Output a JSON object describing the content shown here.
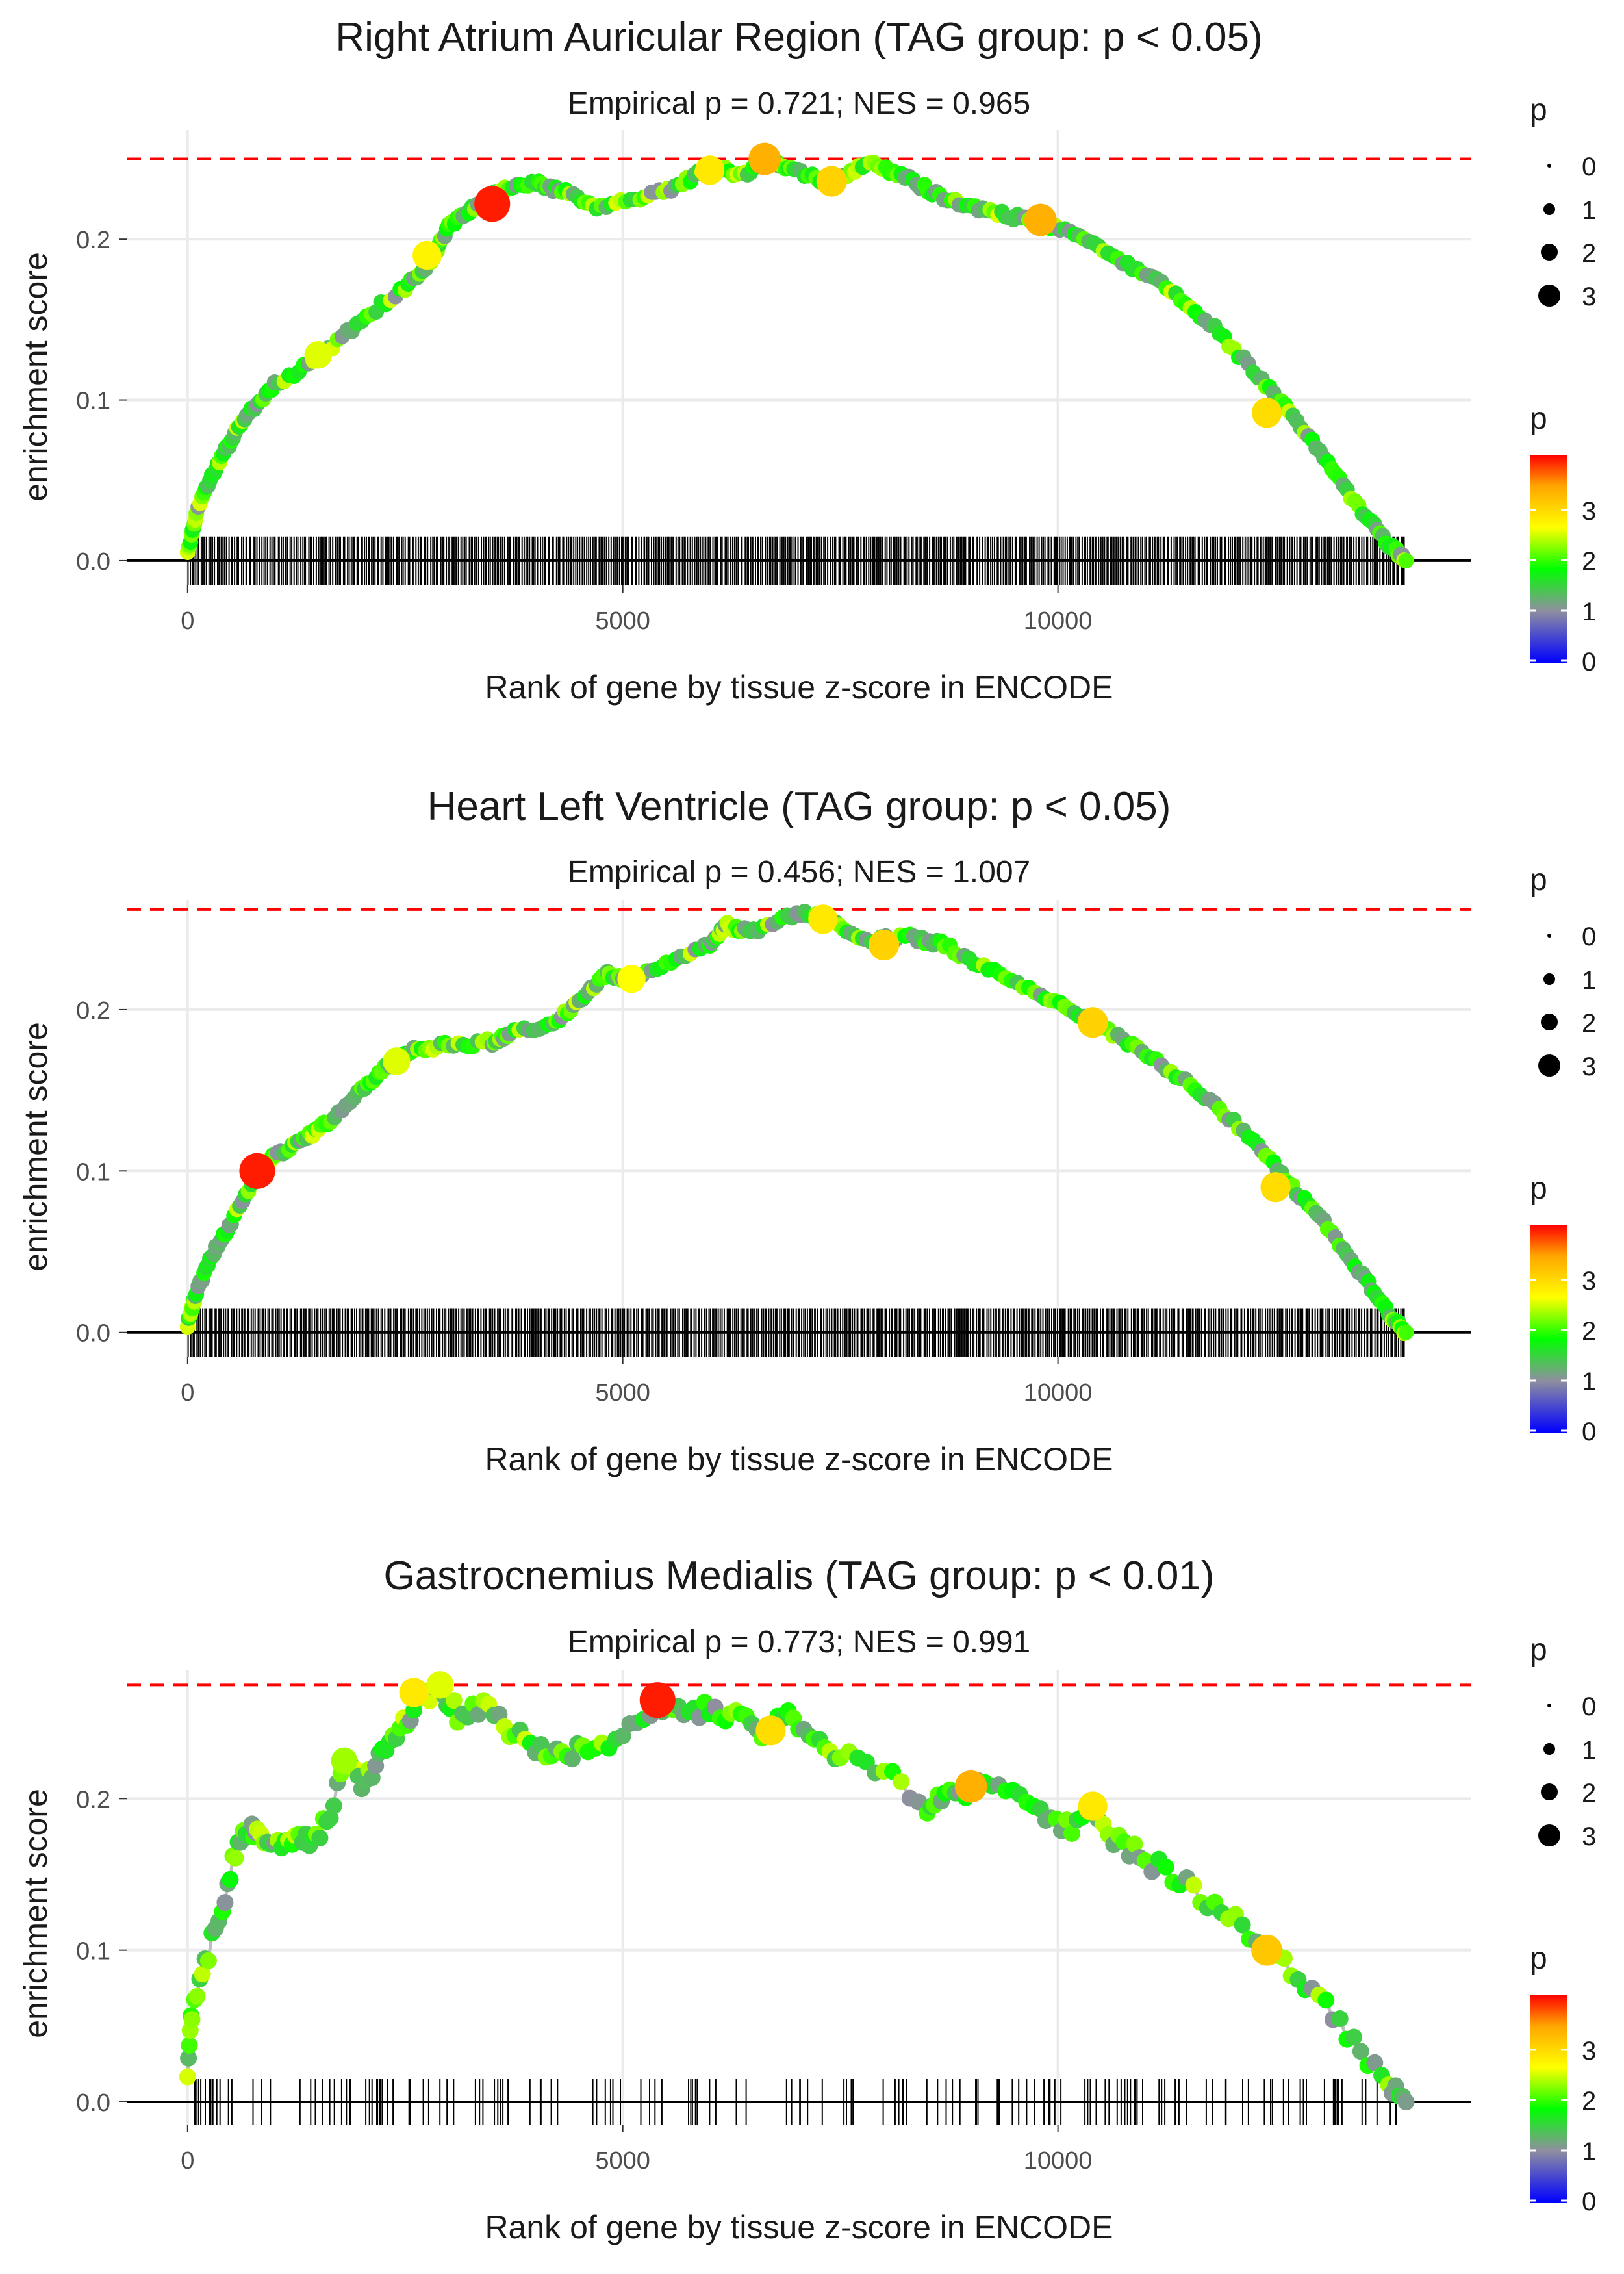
{
  "colors": {
    "grid": "#ebebeb",
    "threshold_line": "#ff0000",
    "axis_line": "#000000",
    "curve": "#bdbdbd",
    "tick_text": "#4d4d4d",
    "text": "#1a1a1a",
    "gradient": [
      "#0000ff",
      "#8f8fa0",
      "#00ff00",
      "#ffff00",
      "#ffa500",
      "#ff0000"
    ]
  },
  "chart_data": [
    {
      "type": "line",
      "title": "Right Atrium Auricular Region (TAG group: p < 0.05)",
      "subtitle": "Empirical p = 0.721; NES = 0.965",
      "xlabel": "Rank of gene by tissue z-score in ENCODE",
      "ylabel": "enrichment score",
      "xlim": [
        -700,
        14750
      ],
      "ylim": [
        -0.015,
        0.268
      ],
      "xticks": [
        0,
        5000,
        10000
      ],
      "xtick_labels": [
        "0",
        "5000",
        "10000"
      ],
      "yticks": [
        0.0,
        0.1,
        0.2
      ],
      "ytick_labels": [
        "0.0",
        "0.1",
        "0.2"
      ],
      "max_es": 0.25,
      "n_genes": 14000,
      "rug": {
        "count": 600,
        "dense": true
      },
      "curve": [
        [
          0,
          0.005
        ],
        [
          100,
          0.03
        ],
        [
          300,
          0.055
        ],
        [
          500,
          0.075
        ],
        [
          700,
          0.092
        ],
        [
          1000,
          0.11
        ],
        [
          1500,
          0.125
        ],
        [
          2000,
          0.15
        ],
        [
          2500,
          0.17
        ],
        [
          2800,
          0.185
        ],
        [
          3000,
          0.208
        ],
        [
          3300,
          0.22
        ],
        [
          3600,
          0.23
        ],
        [
          4000,
          0.235
        ],
        [
          4300,
          0.23
        ],
        [
          4700,
          0.22
        ],
        [
          5200,
          0.225
        ],
        [
          5600,
          0.232
        ],
        [
          6000,
          0.245
        ],
        [
          6400,
          0.24
        ],
        [
          6700,
          0.25
        ],
        [
          7000,
          0.242
        ],
        [
          7400,
          0.235
        ],
        [
          7800,
          0.248
        ],
        [
          8200,
          0.24
        ],
        [
          8600,
          0.228
        ],
        [
          9000,
          0.22
        ],
        [
          9400,
          0.215
        ],
        [
          9800,
          0.21
        ],
        [
          10300,
          0.2
        ],
        [
          10800,
          0.185
        ],
        [
          11300,
          0.168
        ],
        [
          11800,
          0.145
        ],
        [
          12300,
          0.115
        ],
        [
          12700,
          0.09
        ],
        [
          13100,
          0.06
        ],
        [
          13500,
          0.03
        ],
        [
          13800,
          0.01
        ],
        [
          14000,
          0.0
        ]
      ],
      "highlight_points": [
        {
          "x": 3500,
          "y": 0.222,
          "p": 3.9
        },
        {
          "x": 6630,
          "y": 0.25,
          "p": 3.3
        },
        {
          "x": 9800,
          "y": 0.212,
          "p": 3.3
        },
        {
          "x": 7400,
          "y": 0.236,
          "p": 3.0
        },
        {
          "x": 12400,
          "y": 0.092,
          "p": 2.9
        },
        {
          "x": 6000,
          "y": 0.243,
          "p": 2.8
        },
        {
          "x": 2750,
          "y": 0.19,
          "p": 2.7
        },
        {
          "x": 1500,
          "y": 0.128,
          "p": 2.5
        }
      ],
      "size_legend": {
        "title": "p",
        "labels": [
          "0",
          "1",
          "2",
          "3"
        ]
      },
      "color_legend": {
        "title": "p",
        "labels": [
          "3",
          "2",
          "1",
          "0"
        ]
      }
    },
    {
      "type": "line",
      "title": "Heart Left Ventricle (TAG group: p < 0.05)",
      "subtitle": "Empirical p = 0.456; NES = 1.007",
      "xlabel": "Rank of gene by tissue z-score in ENCODE",
      "ylabel": "enrichment score",
      "xlim": [
        -700,
        14750
      ],
      "ylim": [
        -0.015,
        0.268
      ],
      "xticks": [
        0,
        5000,
        10000
      ],
      "xtick_labels": [
        "0",
        "5000",
        "10000"
      ],
      "yticks": [
        0.0,
        0.1,
        0.2
      ],
      "ytick_labels": [
        "0.0",
        "0.1",
        "0.2"
      ],
      "max_es": 0.262,
      "n_genes": 14000,
      "rug": {
        "count": 600,
        "dense": true
      },
      "curve": [
        [
          0,
          0.005
        ],
        [
          100,
          0.025
        ],
        [
          300,
          0.05
        ],
        [
          500,
          0.068
        ],
        [
          800,
          0.1
        ],
        [
          1000,
          0.11
        ],
        [
          1300,
          0.118
        ],
        [
          1600,
          0.13
        ],
        [
          2000,
          0.15
        ],
        [
          2300,
          0.165
        ],
        [
          2600,
          0.175
        ],
        [
          3000,
          0.178
        ],
        [
          3500,
          0.18
        ],
        [
          3700,
          0.185
        ],
        [
          4200,
          0.192
        ],
        [
          4500,
          0.205
        ],
        [
          4800,
          0.222
        ],
        [
          5000,
          0.218
        ],
        [
          5500,
          0.228
        ],
        [
          6000,
          0.24
        ],
        [
          6200,
          0.252
        ],
        [
          6500,
          0.248
        ],
        [
          7000,
          0.26
        ],
        [
          7400,
          0.255
        ],
        [
          7800,
          0.243
        ],
        [
          8300,
          0.245
        ],
        [
          8700,
          0.24
        ],
        [
          9200,
          0.225
        ],
        [
          9800,
          0.21
        ],
        [
          10300,
          0.195
        ],
        [
          10800,
          0.18
        ],
        [
          11300,
          0.162
        ],
        [
          11800,
          0.142
        ],
        [
          12300,
          0.115
        ],
        [
          12700,
          0.09
        ],
        [
          13100,
          0.065
        ],
        [
          13500,
          0.035
        ],
        [
          13800,
          0.012
        ],
        [
          14000,
          0.0
        ]
      ],
      "highlight_points": [
        {
          "x": 800,
          "y": 0.1,
          "p": 3.9
        },
        {
          "x": 8000,
          "y": 0.24,
          "p": 3.0
        },
        {
          "x": 10400,
          "y": 0.192,
          "p": 3.0
        },
        {
          "x": 12500,
          "y": 0.09,
          "p": 2.9
        },
        {
          "x": 7300,
          "y": 0.256,
          "p": 2.8
        },
        {
          "x": 5100,
          "y": 0.219,
          "p": 2.6
        },
        {
          "x": 2400,
          "y": 0.168,
          "p": 2.5
        }
      ],
      "size_legend": {
        "title": "p",
        "labels": [
          "0",
          "1",
          "2",
          "3"
        ]
      },
      "color_legend": {
        "title": "p",
        "labels": [
          "3",
          "2",
          "1",
          "0"
        ]
      }
    },
    {
      "type": "line",
      "title": "Gastrocnemius Medialis (TAG group: p < 0.01)",
      "subtitle": "Empirical p = 0.773; NES = 0.991",
      "xlabel": "Rank of gene by tissue z-score in ENCODE",
      "ylabel": "enrichment score",
      "xlim": [
        -700,
        14750
      ],
      "ylim": [
        -0.015,
        0.285
      ],
      "xticks": [
        0,
        5000,
        10000
      ],
      "xtick_labels": [
        "0",
        "5000",
        "10000"
      ],
      "yticks": [
        0.0,
        0.1,
        0.2
      ],
      "ytick_labels": [
        "0.0",
        "0.1",
        "0.2"
      ],
      "max_es": 0.275,
      "n_genes": 14000,
      "rug": {
        "count": 160,
        "dense": false
      },
      "curve": [
        [
          0,
          0.015
        ],
        [
          50,
          0.06
        ],
        [
          200,
          0.09
        ],
        [
          400,
          0.13
        ],
        [
          550,
          0.165
        ],
        [
          700,
          0.18
        ],
        [
          800,
          0.175
        ],
        [
          1000,
          0.17
        ],
        [
          1200,
          0.175
        ],
        [
          1400,
          0.172
        ],
        [
          1600,
          0.185
        ],
        [
          1800,
          0.225
        ],
        [
          2000,
          0.21
        ],
        [
          2200,
          0.225
        ],
        [
          2400,
          0.24
        ],
        [
          2600,
          0.26
        ],
        [
          2900,
          0.275
        ],
        [
          3100,
          0.255
        ],
        [
          3400,
          0.26
        ],
        [
          3700,
          0.245
        ],
        [
          4000,
          0.235
        ],
        [
          4300,
          0.23
        ],
        [
          4600,
          0.235
        ],
        [
          5000,
          0.24
        ],
        [
          5400,
          0.265
        ],
        [
          5700,
          0.255
        ],
        [
          6000,
          0.26
        ],
        [
          6300,
          0.255
        ],
        [
          6600,
          0.245
        ],
        [
          6900,
          0.255
        ],
        [
          7200,
          0.24
        ],
        [
          7500,
          0.23
        ],
        [
          8000,
          0.22
        ],
        [
          8500,
          0.195
        ],
        [
          8700,
          0.2
        ],
        [
          9000,
          0.208
        ],
        [
          9400,
          0.205
        ],
        [
          9800,
          0.192
        ],
        [
          10100,
          0.18
        ],
        [
          10400,
          0.195
        ],
        [
          10700,
          0.17
        ],
        [
          11000,
          0.16
        ],
        [
          11400,
          0.148
        ],
        [
          11800,
          0.13
        ],
        [
          12200,
          0.11
        ],
        [
          12600,
          0.09
        ],
        [
          13000,
          0.07
        ],
        [
          13400,
          0.04
        ],
        [
          13800,
          0.01
        ],
        [
          14000,
          0.0
        ]
      ],
      "highlight_points": [
        {
          "x": 5400,
          "y": 0.265,
          "p": 3.9
        },
        {
          "x": 9000,
          "y": 0.208,
          "p": 3.3
        },
        {
          "x": 12400,
          "y": 0.1,
          "p": 3.1
        },
        {
          "x": 6700,
          "y": 0.245,
          "p": 2.9
        },
        {
          "x": 2600,
          "y": 0.27,
          "p": 2.8
        },
        {
          "x": 10400,
          "y": 0.195,
          "p": 2.8
        },
        {
          "x": 2900,
          "y": 0.275,
          "p": 2.5
        },
        {
          "x": 1800,
          "y": 0.225,
          "p": 2.3
        }
      ],
      "size_legend": {
        "title": "p",
        "labels": [
          "0",
          "1",
          "2",
          "3"
        ]
      },
      "color_legend": {
        "title": "p",
        "labels": [
          "3",
          "2",
          "1",
          "0"
        ]
      }
    }
  ]
}
